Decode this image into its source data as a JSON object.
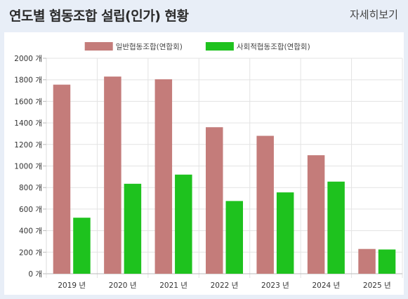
{
  "header": {
    "title": "연도별 협동조합 설립(인가) 현황",
    "more_label": "자세히보기"
  },
  "chart_data": {
    "type": "bar",
    "categories": [
      "2019 년",
      "2020 년",
      "2021 년",
      "2022 년",
      "2023 년",
      "2024 년",
      "2025 년"
    ],
    "series": [
      {
        "name": "일반협동조합(연합회)",
        "color": "#c47c7a",
        "values": [
          1755,
          1830,
          1805,
          1360,
          1280,
          1100,
          230
        ]
      },
      {
        "name": "사회적협동조합(연합회)",
        "color": "#1ec21e",
        "values": [
          520,
          835,
          920,
          675,
          755,
          855,
          225
        ]
      }
    ],
    "ylim": [
      0,
      2000
    ],
    "yticks": [
      "0 개",
      "200 개",
      "400 개",
      "600 개",
      "800 개",
      "1000 개",
      "1200 개",
      "1400 개",
      "1600 개",
      "1800 개",
      "2000 개"
    ],
    "ytick_values": [
      0,
      200,
      400,
      600,
      800,
      1000,
      1200,
      1400,
      1600,
      1800,
      2000
    ],
    "grid": true,
    "legend_position": "top"
  }
}
